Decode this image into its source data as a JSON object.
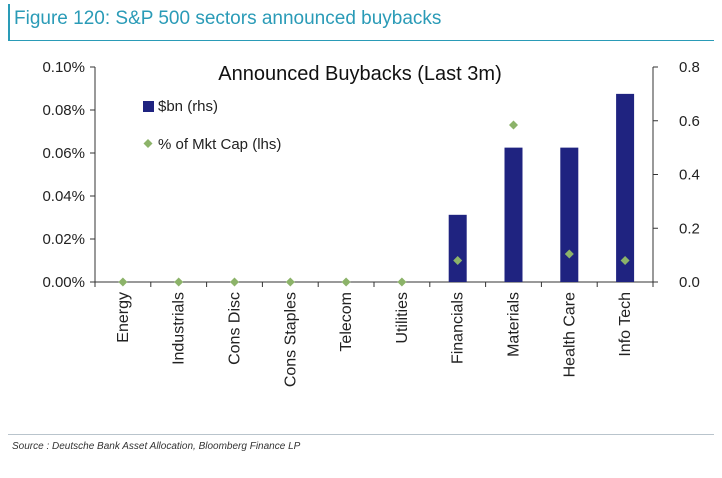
{
  "figure": {
    "title": "Figure 120: S&P 500 sectors announced buybacks",
    "source": "Source : Deutsche Bank Asset Allocation, Bloomberg Finance LP"
  },
  "colors": {
    "accent": "#2a9bb7",
    "bar": "#1f2380",
    "marker": "#8cb369",
    "text": "#222222"
  },
  "chart_data": {
    "type": "bar",
    "title": "Announced Buybacks (Last 3m)",
    "categories": [
      "Energy",
      "Industrials",
      "Cons Disc",
      "Cons Staples",
      "Telecom",
      "Utilities",
      "Financials",
      "Materials",
      "Health Care",
      "Info Tech"
    ],
    "series": [
      {
        "name": "$bn (rhs)",
        "type": "bar",
        "axis": "right",
        "values": [
          0,
          0,
          0,
          0,
          0,
          0,
          0.25,
          0.5,
          0.5,
          0.7
        ]
      },
      {
        "name": "% of Mkt Cap (lhs)",
        "type": "scatter",
        "axis": "left",
        "values": [
          0,
          0,
          0,
          0,
          0,
          0,
          0.01,
          0.073,
          0.013,
          0.01
        ]
      }
    ],
    "y_left": {
      "ylim": [
        0,
        0.1
      ],
      "ticks": [
        "0.00%",
        "0.02%",
        "0.04%",
        "0.06%",
        "0.08%",
        "0.10%"
      ]
    },
    "y_right": {
      "ylim": [
        0,
        0.8
      ],
      "ticks": [
        "0.0",
        "0.2",
        "0.4",
        "0.6",
        "0.8"
      ]
    },
    "xlabel": "",
    "ylabel": "",
    "grid": false,
    "legend_position": "top-left"
  }
}
